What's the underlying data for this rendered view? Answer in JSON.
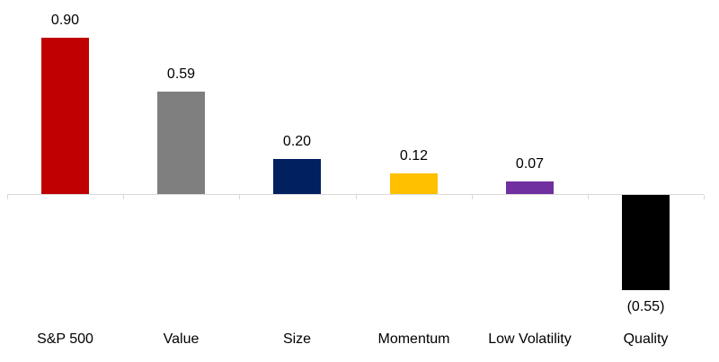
{
  "chart_data": {
    "type": "bar",
    "title": "",
    "xlabel": "",
    "ylabel": "",
    "categories": [
      "S&P 500",
      "Value",
      "Size",
      "Momentum",
      "Low Volatility",
      "Quality"
    ],
    "values": [
      0.9,
      0.59,
      0.2,
      0.12,
      0.07,
      -0.55
    ],
    "data_labels": [
      "0.90",
      "0.59",
      "0.20",
      "0.12",
      "0.07",
      "(0.55)"
    ],
    "bar_colors": [
      "#C00000",
      "#7F7F7F",
      "#002060",
      "#FFC000",
      "#7030A0",
      "#000000"
    ],
    "ylim": [
      -0.75,
      1.0
    ],
    "grid": false,
    "legend": false,
    "axis_line_color": "#D9D9D9",
    "label_color": "#000000"
  }
}
